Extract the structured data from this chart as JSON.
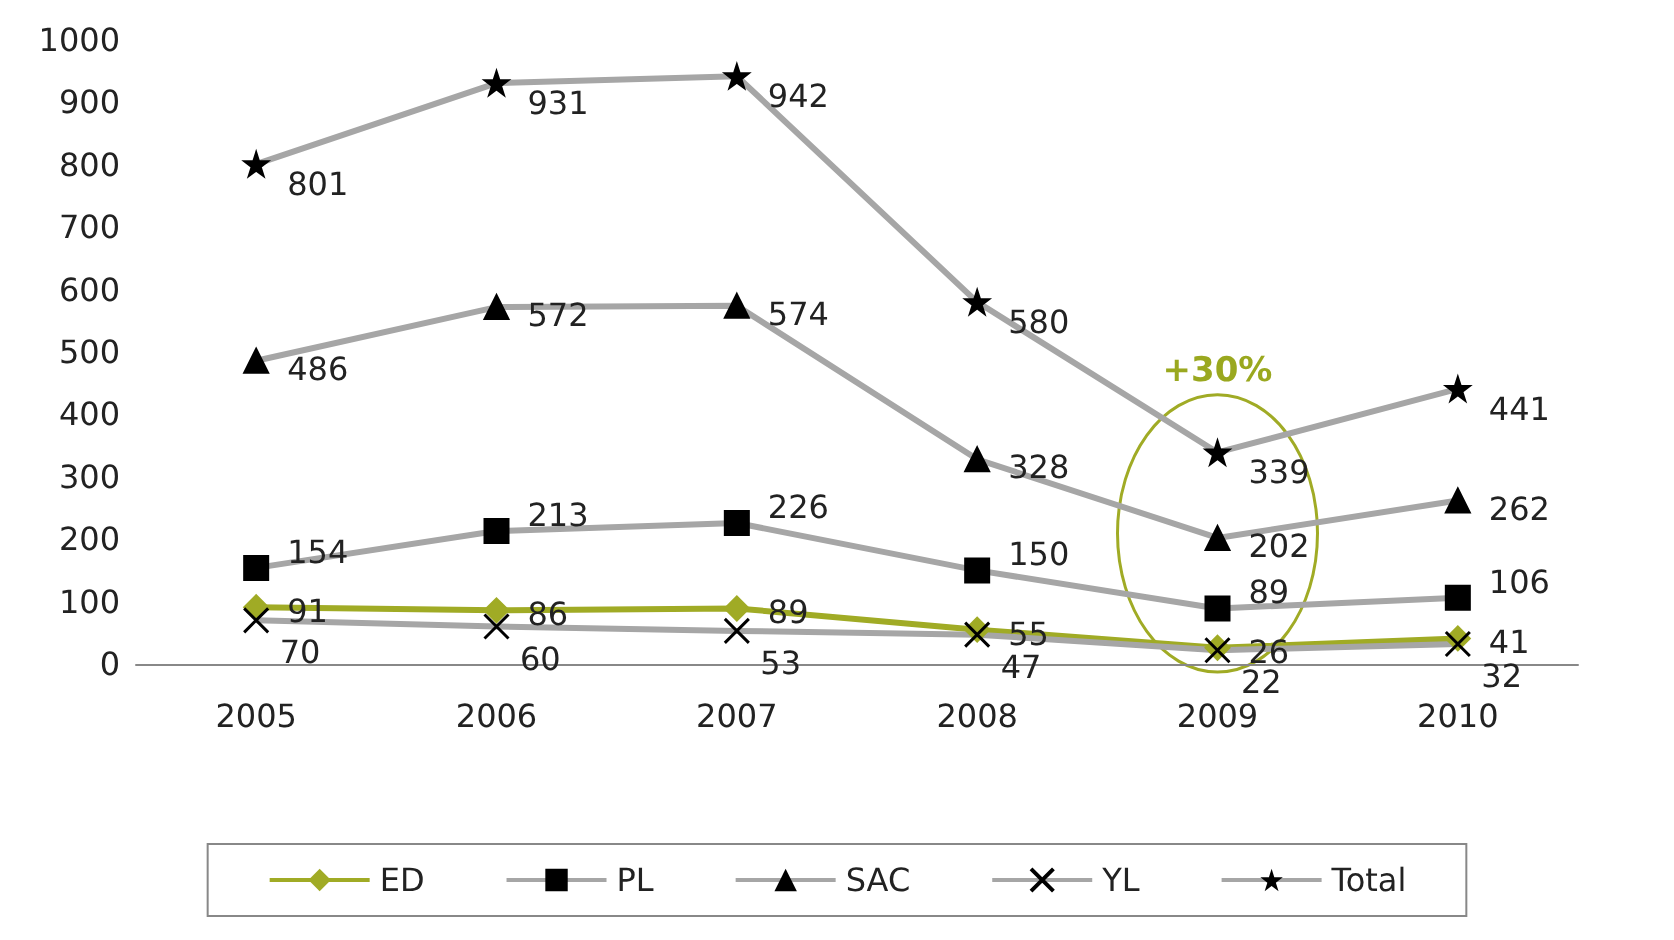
{
  "chart_data": {
    "type": "line",
    "categories": [
      "2005",
      "2006",
      "2007",
      "2008",
      "2009",
      "2010"
    ],
    "series": [
      {
        "name": "ED",
        "color": "#a0ab25",
        "marker": "diamond",
        "values": [
          91,
          86,
          89,
          55,
          26,
          41
        ]
      },
      {
        "name": "PL",
        "color": "#a6a6a6",
        "marker": "square",
        "values": [
          154,
          213,
          226,
          150,
          89,
          106
        ]
      },
      {
        "name": "SAC",
        "color": "#a6a6a6",
        "marker": "triangle",
        "values": [
          486,
          572,
          574,
          328,
          202,
          262
        ]
      },
      {
        "name": "YL",
        "color": "#a6a6a6",
        "marker": "cross",
        "values": [
          70,
          60,
          53,
          47,
          22,
          32
        ]
      },
      {
        "name": "Total",
        "color": "#a6a6a6",
        "marker": "star",
        "values": [
          801,
          931,
          942,
          580,
          339,
          441
        ]
      }
    ],
    "ylim": [
      0,
      1000
    ],
    "yticks": [
      0,
      100,
      200,
      300,
      400,
      500,
      600,
      700,
      800,
      900,
      1000
    ],
    "grid": false,
    "legend": "bottom",
    "data_labels": true,
    "annotations": [
      "+30%"
    ]
  }
}
